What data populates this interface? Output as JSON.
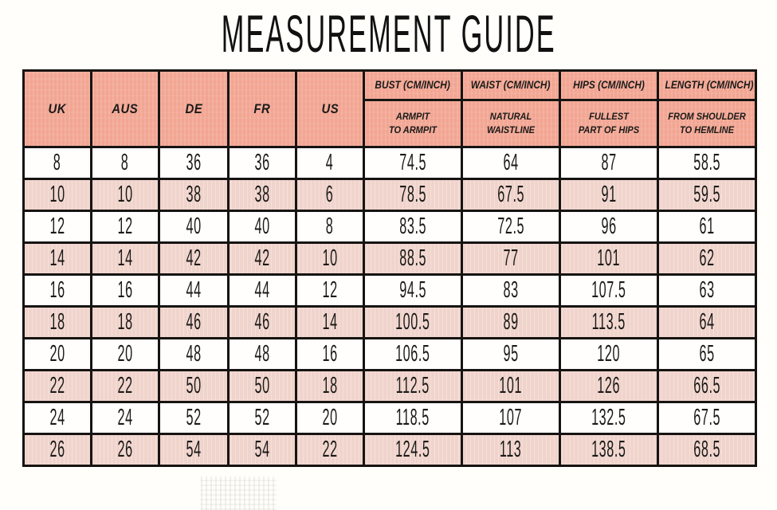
{
  "page": {
    "title": "MEASUREMENT GUIDE"
  },
  "table": {
    "size_columns": [
      {
        "label": "UK"
      },
      {
        "label": "AUS"
      },
      {
        "label": "DE"
      },
      {
        "label": "FR"
      },
      {
        "label": "US"
      }
    ],
    "measurement_columns": [
      {
        "label": "BUST (CM/INCH)",
        "sub_line1": "ARMPIT",
        "sub_line2": "TO ARMPIT"
      },
      {
        "label": "WAIST (CM/INCH)",
        "sub_line1": "NATURAL",
        "sub_line2": "WAISTLINE"
      },
      {
        "label": "HIPS (CM/INCH)",
        "sub_line1": "FULLEST",
        "sub_line2": "PART OF HIPS"
      },
      {
        "label": "LENGTH (CM/INCH)",
        "sub_line1": "FROM SHOULDER",
        "sub_line2": "TO HEMLINE"
      }
    ],
    "rows": [
      [
        "8",
        "8",
        "36",
        "36",
        "4",
        "74.5",
        "64",
        "87",
        "58.5"
      ],
      [
        "10",
        "10",
        "38",
        "38",
        "6",
        "78.5",
        "67.5",
        "91",
        "59.5"
      ],
      [
        "12",
        "12",
        "40",
        "40",
        "8",
        "83.5",
        "72.5",
        "96",
        "61"
      ],
      [
        "14",
        "14",
        "42",
        "42",
        "10",
        "88.5",
        "77",
        "101",
        "62"
      ],
      [
        "16",
        "16",
        "44",
        "44",
        "12",
        "94.5",
        "83",
        "107.5",
        "63"
      ],
      [
        "18",
        "18",
        "46",
        "46",
        "14",
        "100.5",
        "89",
        "113.5",
        "64"
      ],
      [
        "20",
        "20",
        "48",
        "48",
        "16",
        "106.5",
        "95",
        "120",
        "65"
      ],
      [
        "22",
        "22",
        "50",
        "50",
        "18",
        "112.5",
        "101",
        "126",
        "66.5"
      ],
      [
        "24",
        "24",
        "52",
        "52",
        "20",
        "118.5",
        "107",
        "132.5",
        "67.5"
      ],
      [
        "26",
        "26",
        "54",
        "54",
        "22",
        "124.5",
        "113",
        "138.5",
        "68.5"
      ]
    ]
  },
  "colors": {
    "header_bg": "#f2a592",
    "row_alt_bg": "#f0d4cc",
    "row_bg": "#fffefc",
    "border": "#161412",
    "text": "#1b1a18"
  }
}
